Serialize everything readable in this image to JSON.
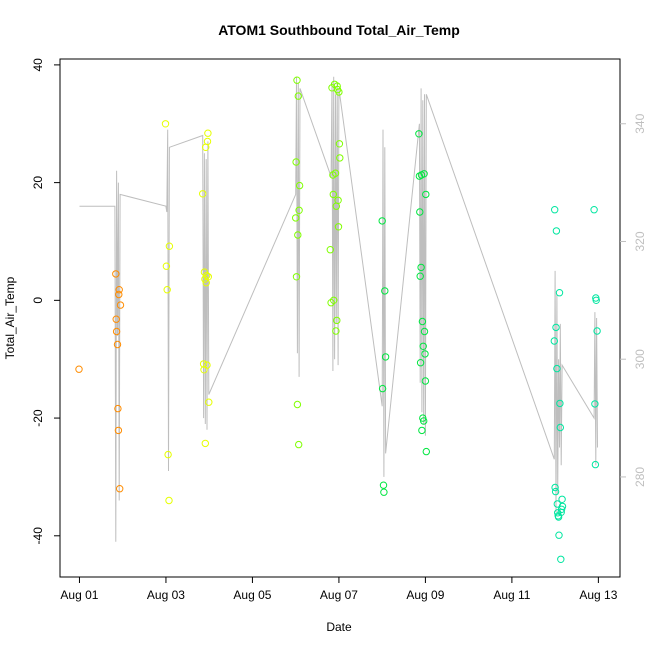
{
  "chart_data": {
    "type": "scatter",
    "title": "ATOM1 Southbound Total_Air_Temp",
    "xlabel": "Date",
    "ylabel": "Total_Air_Temp",
    "x_ticks": [
      "Aug 01",
      "Aug 03",
      "Aug 05",
      "Aug 07",
      "Aug 09",
      "Aug 11",
      "Aug 13"
    ],
    "x_tick_days": [
      1,
      3,
      5,
      7,
      9,
      11,
      13
    ],
    "xlim_days": [
      0.55,
      13.5
    ],
    "ylim": [
      -47,
      41
    ],
    "y_ticks": [
      -40,
      -20,
      0,
      20,
      40
    ],
    "right_axis": {
      "label_color": "#bfbfbf",
      "ticks": [
        280,
        300,
        320,
        340
      ],
      "ylim": [
        263,
        351
      ]
    },
    "point_series": [
      {
        "x": [
          0.99,
          1.84,
          1.85,
          1.86,
          1.88,
          1.89,
          1.9,
          1.91,
          1.92,
          1.93,
          1.95
        ],
        "y": [
          -11.7,
          4.5,
          -3.2,
          -5.3,
          -7.5,
          -18.4,
          -22.1,
          1.0,
          1.8,
          -32.0,
          -0.8
        ],
        "color": "#ff8c00"
      },
      {
        "x": [
          2.99,
          3.01,
          3.03,
          3.05,
          3.07,
          3.08,
          3.85,
          3.87,
          3.88,
          3.89,
          3.9,
          3.91,
          3.92,
          3.93,
          3.94,
          3.95,
          3.96,
          3.97,
          3.98,
          3.99
        ],
        "y": [
          30.0,
          5.8,
          1.8,
          -26.2,
          -34.0,
          9.2,
          18.1,
          -10.8,
          -11.8,
          4.8,
          3.6,
          -24.3,
          26.0,
          3.0,
          4.2,
          -11.0,
          27.0,
          28.4,
          4.0,
          -17.3
        ],
        "color": "#e6ff00"
      },
      {
        "x": [
          6.0,
          6.01,
          6.02,
          6.03,
          6.04,
          6.05,
          6.06,
          6.07,
          6.08,
          6.09,
          6.8,
          6.82,
          6.84,
          6.86,
          6.87,
          6.88,
          6.9,
          6.92,
          6.93,
          6.94,
          6.95,
          6.96,
          6.97,
          6.98,
          6.99,
          7.0,
          7.01,
          7.02
        ],
        "y": [
          14.0,
          23.5,
          4.0,
          37.4,
          -17.7,
          11.1,
          34.7,
          -24.5,
          15.3,
          19.5,
          8.6,
          -0.4,
          36.1,
          21.3,
          18.0,
          0.0,
          36.7,
          21.6,
          -5.2,
          16.0,
          -3.4,
          36.4,
          35.8,
          17.0,
          12.5,
          35.4,
          26.6,
          24.2
        ],
        "color": "#80ff00"
      },
      {
        "x": [
          8.0,
          8.01,
          8.03,
          8.04,
          8.06,
          8.08,
          8.85,
          8.86,
          8.87,
          8.88,
          8.89,
          8.9,
          8.91,
          8.92,
          8.93,
          8.94,
          8.95,
          8.96,
          8.97,
          8.98,
          8.99,
          9.0,
          9.01,
          9.02
        ],
        "y": [
          13.5,
          -15.0,
          -31.4,
          -32.6,
          1.6,
          -9.6,
          28.3,
          21.1,
          15.0,
          4.1,
          -10.6,
          5.6,
          21.3,
          -22.1,
          -3.6,
          -20.0,
          -7.8,
          -20.5,
          21.5,
          -5.3,
          -9.1,
          -13.7,
          18.0,
          -25.7
        ],
        "color": "#00e640"
      },
      {
        "x": [
          11.98,
          11.99,
          12.0,
          12.01,
          12.02,
          12.03,
          12.04,
          12.05,
          12.06,
          12.07,
          12.08,
          12.09,
          12.1,
          12.11,
          12.12,
          12.13,
          12.14,
          12.15,
          12.16,
          12.17,
          12.9,
          12.92,
          12.93,
          12.94,
          12.95,
          12.97
        ],
        "y": [
          -6.9,
          15.4,
          -31.8,
          -32.5,
          -4.6,
          11.8,
          -11.6,
          -34.6,
          -36.1,
          -36.6,
          -36.8,
          -39.9,
          1.3,
          -17.5,
          -21.6,
          -44.0,
          -36.0,
          -35.5,
          -33.8,
          -35.0,
          15.4,
          -17.6,
          -27.9,
          0.4,
          0.0,
          -5.2
        ],
        "color": "#00e6a0"
      }
    ],
    "gray_trace": {
      "color": "#bebebe",
      "x": [
        1.0,
        1.82,
        1.84,
        1.86,
        1.88,
        1.9,
        1.92,
        1.94,
        3.0,
        3.02,
        3.04,
        3.06,
        3.08,
        3.85,
        3.87,
        3.89,
        3.91,
        3.93,
        3.95,
        3.97,
        3.99,
        6.0,
        6.02,
        6.04,
        6.06,
        6.08,
        6.1,
        6.82,
        6.84,
        6.86,
        6.88,
        6.9,
        6.92,
        6.94,
        6.96,
        6.98,
        7.0,
        8.0,
        8.02,
        8.04,
        8.06,
        8.08,
        8.86,
        8.88,
        8.9,
        8.92,
        8.94,
        8.96,
        8.98,
        9.0,
        9.02,
        11.98,
        12.0,
        12.02,
        12.04,
        12.06,
        12.08,
        12.1,
        12.12,
        12.14,
        12.16,
        12.9,
        12.92,
        12.94,
        12.96,
        12.98
      ],
      "y": [
        326,
        326,
        269,
        332,
        304,
        330,
        276,
        328,
        326,
        325,
        339,
        281,
        336,
        338,
        290,
        335,
        289,
        334,
        288,
        337,
        294,
        328,
        348,
        301,
        347,
        297,
        346,
        331,
        347,
        298,
        348,
        300,
        345,
        306,
        347,
        299,
        346,
        292,
        339,
        280,
        336,
        284,
        340,
        296,
        346,
        291,
        344,
        289,
        345,
        287,
        345,
        283,
        315,
        274,
        311,
        277,
        300,
        285,
        306,
        282,
        299,
        290,
        308,
        282,
        307,
        285
      ]
    }
  }
}
